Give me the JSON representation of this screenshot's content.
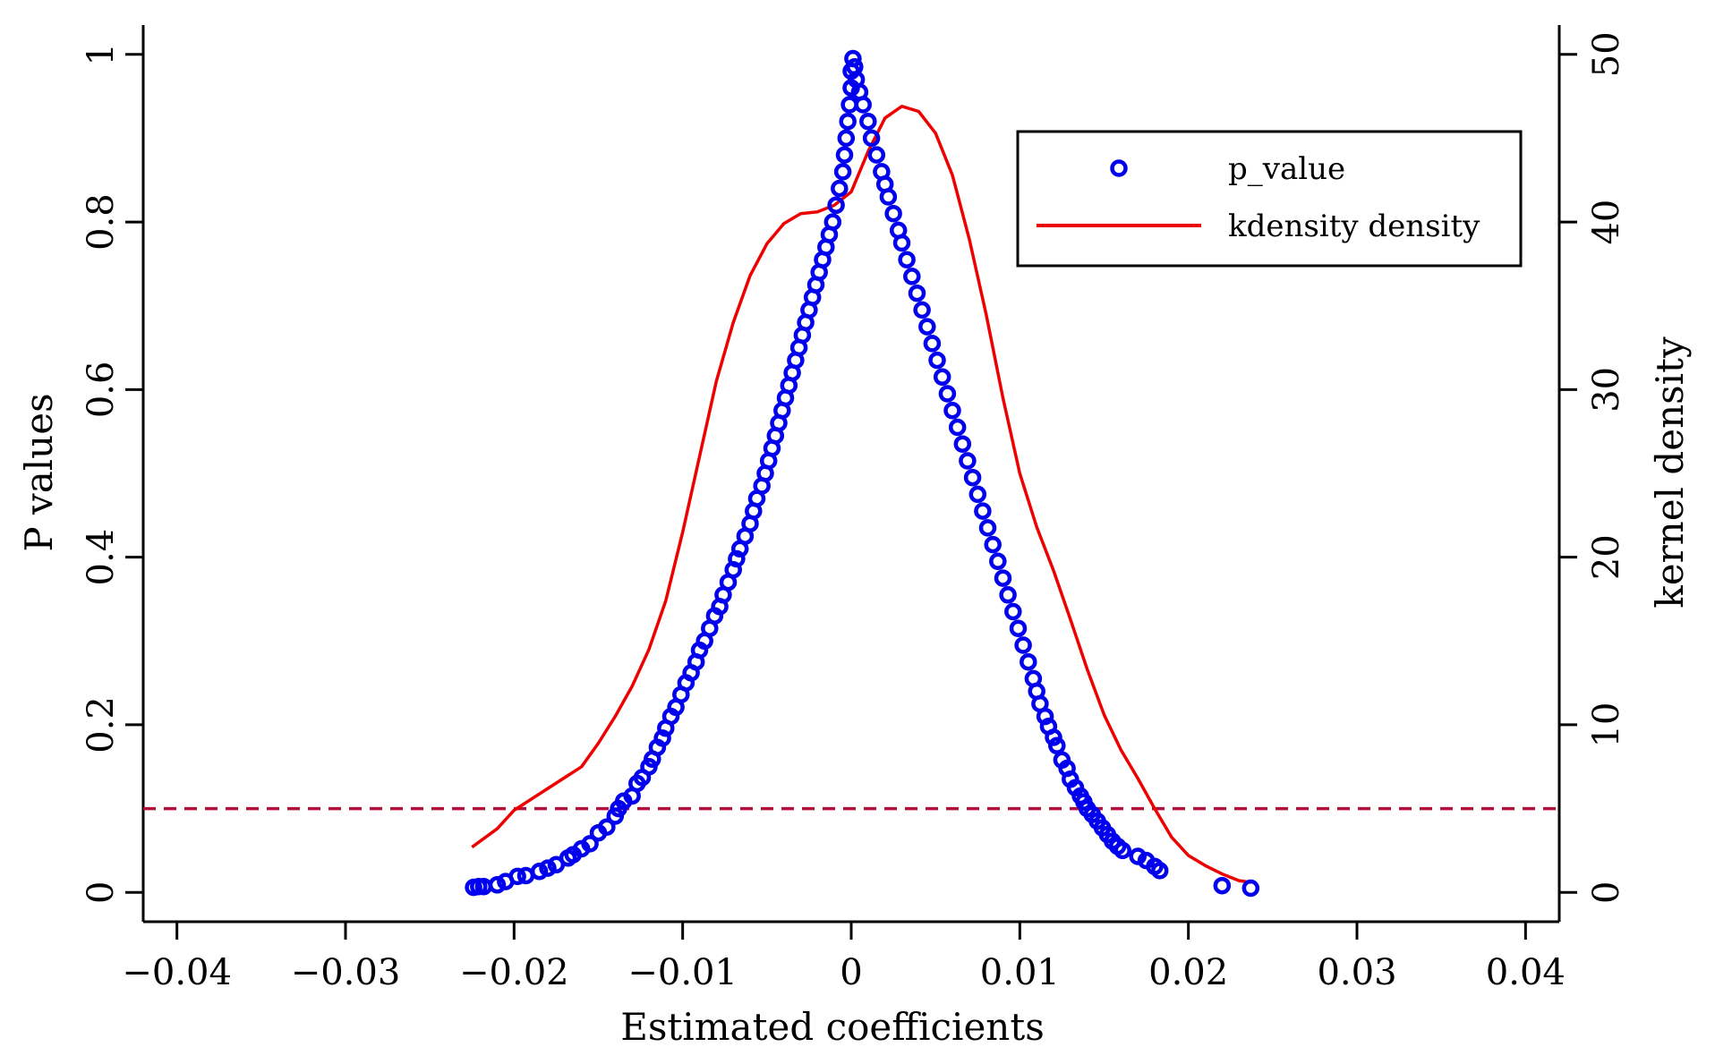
{
  "chart_data": {
    "type": "scatter",
    "xlabel": "Estimated coefficients",
    "ylabel": "P values",
    "y2label": "kernel density",
    "xlim": [
      -0.042,
      0.042
    ],
    "ylim": [
      -0.035,
      1.035
    ],
    "y2lim": [
      -1.75,
      51.75
    ],
    "x_ticks": [
      "-0.04",
      "-0.03",
      "-0.02",
      "-0.01",
      "0",
      "0.01",
      "0.02",
      "0.03",
      "0.04"
    ],
    "x_tick_values": [
      -0.04,
      -0.03,
      -0.02,
      -0.01,
      0,
      0.01,
      0.02,
      0.03,
      0.04
    ],
    "y_ticks": [
      "0",
      "0.2",
      "0.4",
      "0.6",
      "0.8",
      "1"
    ],
    "y_tick_values": [
      0,
      0.2,
      0.4,
      0.6,
      0.8,
      1.0
    ],
    "y2_ticks": [
      "0",
      "10",
      "20",
      "30",
      "40",
      "50"
    ],
    "y2_tick_values": [
      0,
      10,
      20,
      30,
      40,
      50
    ],
    "grid": false,
    "legend": {
      "position": "top-right",
      "entries": [
        {
          "label": "p_value",
          "marker": "circle",
          "color": "#0000ee"
        },
        {
          "label": "kdensity density",
          "marker": "line",
          "color": "#ee0000"
        }
      ]
    },
    "reference_line": {
      "y": 0.1,
      "style": "dashed",
      "color": "#b0103a"
    },
    "series": [
      {
        "name": "p_value",
        "type": "scatter",
        "axis": "left",
        "color": "#0000ee",
        "points": [
          [
            -0.0224,
            0.006
          ],
          [
            -0.0221,
            0.007
          ],
          [
            -0.0218,
            0.007
          ],
          [
            -0.021,
            0.009
          ],
          [
            -0.0205,
            0.013
          ],
          [
            -0.0198,
            0.019
          ],
          [
            -0.0193,
            0.02
          ],
          [
            -0.0185,
            0.025
          ],
          [
            -0.018,
            0.029
          ],
          [
            -0.0175,
            0.033
          ],
          [
            -0.0168,
            0.041
          ],
          [
            -0.0165,
            0.045
          ],
          [
            -0.016,
            0.052
          ],
          [
            -0.0155,
            0.058
          ],
          [
            -0.015,
            0.071
          ],
          [
            -0.0145,
            0.078
          ],
          [
            -0.014,
            0.091
          ],
          [
            -0.0138,
            0.1
          ],
          [
            -0.0135,
            0.109
          ],
          [
            -0.013,
            0.115
          ],
          [
            -0.0127,
            0.13
          ],
          [
            -0.0124,
            0.137
          ],
          [
            -0.012,
            0.15
          ],
          [
            -0.0118,
            0.159
          ],
          [
            -0.0115,
            0.173
          ],
          [
            -0.0112,
            0.184
          ],
          [
            -0.011,
            0.196
          ],
          [
            -0.0107,
            0.21
          ],
          [
            -0.0104,
            0.221
          ],
          [
            -0.0101,
            0.236
          ],
          [
            -0.0098,
            0.25
          ],
          [
            -0.0095,
            0.262
          ],
          [
            -0.0092,
            0.275
          ],
          [
            -0.009,
            0.289
          ],
          [
            -0.0087,
            0.3
          ],
          [
            -0.0084,
            0.315
          ],
          [
            -0.0081,
            0.33
          ],
          [
            -0.0078,
            0.341
          ],
          [
            -0.0076,
            0.355
          ],
          [
            -0.0073,
            0.37
          ],
          [
            -0.007,
            0.385
          ],
          [
            -0.0068,
            0.398
          ],
          [
            -0.0066,
            0.41
          ],
          [
            -0.0063,
            0.425
          ],
          [
            -0.006,
            0.44
          ],
          [
            -0.0058,
            0.455
          ],
          [
            -0.0056,
            0.47
          ],
          [
            -0.0053,
            0.485
          ],
          [
            -0.0051,
            0.5
          ],
          [
            -0.0049,
            0.515
          ],
          [
            -0.0047,
            0.53
          ],
          [
            -0.0045,
            0.545
          ],
          [
            -0.0043,
            0.56
          ],
          [
            -0.0041,
            0.575
          ],
          [
            -0.0039,
            0.59
          ],
          [
            -0.0037,
            0.605
          ],
          [
            -0.0035,
            0.62
          ],
          [
            -0.0033,
            0.635
          ],
          [
            -0.0031,
            0.65
          ],
          [
            -0.0029,
            0.665
          ],
          [
            -0.0027,
            0.68
          ],
          [
            -0.0025,
            0.695
          ],
          [
            -0.0023,
            0.71
          ],
          [
            -0.0021,
            0.725
          ],
          [
            -0.0019,
            0.74
          ],
          [
            -0.0017,
            0.755
          ],
          [
            -0.0015,
            0.77
          ],
          [
            -0.0013,
            0.785
          ],
          [
            -0.0011,
            0.8
          ],
          [
            -0.0009,
            0.82
          ],
          [
            -0.0007,
            0.84
          ],
          [
            -0.0005,
            0.86
          ],
          [
            -0.0004,
            0.88
          ],
          [
            -0.0003,
            0.9
          ],
          [
            -0.0002,
            0.92
          ],
          [
            -0.0001,
            0.94
          ],
          [
            0.0,
            0.96
          ],
          [
            0.0,
            0.98
          ],
          [
            0.0001,
            0.995
          ],
          [
            0.0002,
            0.985
          ],
          [
            0.0003,
            0.97
          ],
          [
            0.0005,
            0.955
          ],
          [
            0.0007,
            0.94
          ],
          [
            0.001,
            0.92
          ],
          [
            0.0012,
            0.9
          ],
          [
            0.0015,
            0.88
          ],
          [
            0.0018,
            0.86
          ],
          [
            0.002,
            0.845
          ],
          [
            0.0022,
            0.83
          ],
          [
            0.0025,
            0.81
          ],
          [
            0.0028,
            0.79
          ],
          [
            0.003,
            0.775
          ],
          [
            0.0033,
            0.755
          ],
          [
            0.0036,
            0.735
          ],
          [
            0.0039,
            0.715
          ],
          [
            0.0042,
            0.695
          ],
          [
            0.0045,
            0.675
          ],
          [
            0.0048,
            0.655
          ],
          [
            0.0051,
            0.635
          ],
          [
            0.0054,
            0.615
          ],
          [
            0.0057,
            0.595
          ],
          [
            0.006,
            0.575
          ],
          [
            0.0063,
            0.555
          ],
          [
            0.0066,
            0.535
          ],
          [
            0.0069,
            0.515
          ],
          [
            0.0072,
            0.495
          ],
          [
            0.0075,
            0.475
          ],
          [
            0.0078,
            0.455
          ],
          [
            0.0081,
            0.435
          ],
          [
            0.0084,
            0.415
          ],
          [
            0.0087,
            0.395
          ],
          [
            0.009,
            0.375
          ],
          [
            0.0093,
            0.355
          ],
          [
            0.0096,
            0.335
          ],
          [
            0.0099,
            0.315
          ],
          [
            0.0102,
            0.295
          ],
          [
            0.0105,
            0.275
          ],
          [
            0.0108,
            0.255
          ],
          [
            0.011,
            0.24
          ],
          [
            0.0112,
            0.225
          ],
          [
            0.0115,
            0.21
          ],
          [
            0.0117,
            0.198
          ],
          [
            0.012,
            0.185
          ],
          [
            0.0122,
            0.175
          ],
          [
            0.0125,
            0.158
          ],
          [
            0.0128,
            0.148
          ],
          [
            0.013,
            0.135
          ],
          [
            0.0133,
            0.125
          ],
          [
            0.0136,
            0.115
          ],
          [
            0.0138,
            0.108
          ],
          [
            0.014,
            0.1
          ],
          [
            0.0143,
            0.093
          ],
          [
            0.0146,
            0.085
          ],
          [
            0.0149,
            0.077
          ],
          [
            0.0152,
            0.069
          ],
          [
            0.0155,
            0.061
          ],
          [
            0.0158,
            0.055
          ],
          [
            0.0161,
            0.05
          ],
          [
            0.017,
            0.043
          ],
          [
            0.0175,
            0.038
          ],
          [
            0.018,
            0.031
          ],
          [
            0.0183,
            0.026
          ],
          [
            0.022,
            0.008
          ],
          [
            0.0237,
            0.005
          ]
        ]
      },
      {
        "name": "kdensity density",
        "type": "line",
        "axis": "right",
        "color": "#ee0000",
        "points": [
          [
            -0.0225,
            2.7
          ],
          [
            -0.021,
            3.8
          ],
          [
            -0.02,
            4.9
          ],
          [
            -0.018,
            6.2
          ],
          [
            -0.016,
            7.5
          ],
          [
            -0.015,
            8.9
          ],
          [
            -0.014,
            10.5
          ],
          [
            -0.013,
            12.3
          ],
          [
            -0.012,
            14.5
          ],
          [
            -0.011,
            17.4
          ],
          [
            -0.01,
            21.5
          ],
          [
            -0.009,
            26.0
          ],
          [
            -0.008,
            30.5
          ],
          [
            -0.007,
            34.0
          ],
          [
            -0.006,
            36.8
          ],
          [
            -0.005,
            38.7
          ],
          [
            -0.004,
            39.9
          ],
          [
            -0.003,
            40.5
          ],
          [
            -0.002,
            40.6
          ],
          [
            -0.001,
            41.0
          ],
          [
            0.0,
            41.8
          ],
          [
            0.001,
            44.2
          ],
          [
            0.002,
            46.2
          ],
          [
            0.003,
            46.9
          ],
          [
            0.004,
            46.6
          ],
          [
            0.005,
            45.3
          ],
          [
            0.006,
            42.8
          ],
          [
            0.007,
            39.0
          ],
          [
            0.008,
            34.5
          ],
          [
            0.009,
            29.5
          ],
          [
            0.01,
            25.0
          ],
          [
            0.011,
            21.8
          ],
          [
            0.012,
            19.2
          ],
          [
            0.013,
            16.3
          ],
          [
            0.014,
            13.3
          ],
          [
            0.015,
            10.6
          ],
          [
            0.016,
            8.5
          ],
          [
            0.017,
            6.8
          ],
          [
            0.018,
            5.0
          ],
          [
            0.019,
            3.3
          ],
          [
            0.02,
            2.2
          ],
          [
            0.021,
            1.6
          ],
          [
            0.022,
            1.1
          ],
          [
            0.023,
            0.7
          ],
          [
            0.0237,
            0.6
          ]
        ]
      }
    ]
  }
}
